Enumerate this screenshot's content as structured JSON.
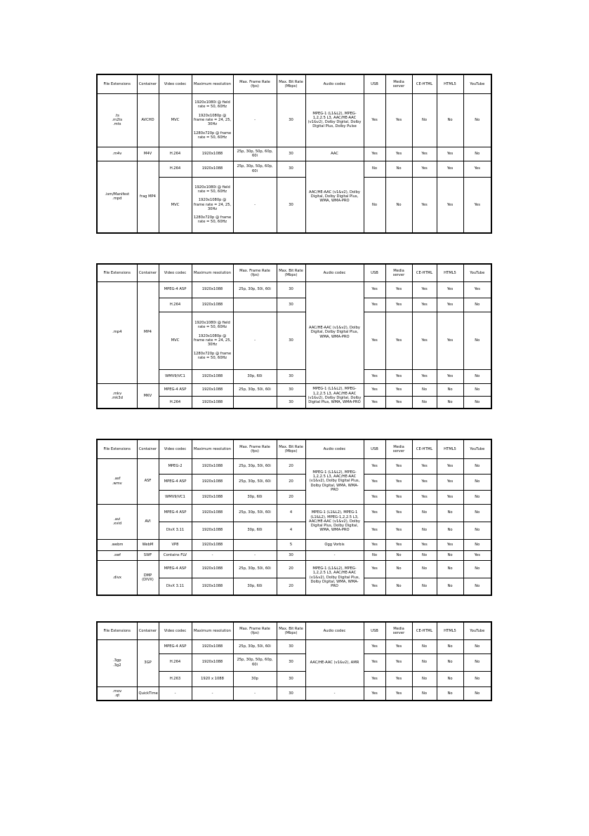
{
  "columns": [
    "File Extensions",
    "Container",
    "Video codec",
    "Maximum resolution",
    "Max. Frame Rate (fps)",
    "Max. Bit Rate (Mbps)",
    "Audio codec",
    "USB",
    "Media server",
    "CE-HTML",
    "HTML5",
    "YouTube"
  ],
  "tables": [
    {
      "rows": [
        [
          ".ts\n.m2ts\n.mts",
          "AVCHD",
          "MVC",
          "1920x1080i @ field rate = 50, 60Hz\n\n1920x1080p @ frame rate = 24, 25, 30Hz\n\n1280x720p @ frame rate = 50, 60Hz",
          "-",
          "30",
          "MPEG-1 (L1&L2), MPEG-1,2,2.5 L3, AAC/HE-AAC (v1&v2), Dolby Digital, Dolby Digital Plus, Dolby Pulse",
          "Yes",
          "Yes",
          "No",
          "No",
          "No"
        ],
        [
          ".m4v",
          "M4V",
          "H.264",
          "1920x1088",
          "25p, 30p, 50p, 60p, 60i",
          "30",
          "AAC",
          "Yes",
          "Yes",
          "Yes",
          "Yes",
          "No"
        ],
        [
          {
            "text": ".ism/Manifest\n.mpd",
            "rowspan": 2
          },
          {
            "text": "frag MP4",
            "rowspan": 2
          },
          "H.264",
          "1920x1088",
          "25p, 30p, 50p, 60p, 60i",
          "30",
          {
            "text": "AAC/HE-AAC (v1&v2), Dolby Digital, Dolby Digital Plus, WMA, WMA-PRO",
            "rowspan": 2
          },
          "No",
          "No",
          "Yes",
          "Yes",
          "Yes"
        ],
        [
          "MVC",
          "1920x1080i @ field rate = 50, 60Hz\n\n1920x1080p @ frame rate = 24, 25, 30Hz\n\n1280x720p @ frame rate = 50, 60Hz",
          "-",
          "30",
          "No",
          "No",
          "Yes",
          "Yes",
          "Yes"
        ]
      ]
    },
    {
      "rows": [
        [
          {
            "text": ".mp4",
            "rowspan": 4
          },
          {
            "text": "MP4",
            "rowspan": 4
          },
          "MPEG-4 ASP",
          "1920x1088",
          "25p, 30p, 50i, 60i",
          "30",
          {
            "text": "AAC/HE-AAC (v1&v2), Dolby Digital, Dolby Digital Plus, WMA, WMA-PRO",
            "rowspan": 4
          },
          "Yes",
          "Yes",
          "Yes",
          "Yes",
          "Yes"
        ],
        [
          "H.264",
          "1920x1088",
          "",
          "30",
          "Yes",
          "Yes",
          "Yes",
          "Yes",
          "No"
        ],
        [
          "MVC",
          "1920x1080i @ field rate = 50, 60Hz\n\n1920x1080p @ frame rate = 24, 25, 30Hz\n\n1280x720p @ frame rate = 50, 60Hz",
          "-",
          "30",
          "Yes",
          "Yes",
          "Yes",
          "Yes",
          "No"
        ],
        [
          "WMV9/VC1",
          "1920x1088",
          "30p, 60i",
          "30",
          "Yes",
          "Yes",
          "Yes",
          "Yes",
          "No"
        ],
        [
          {
            "text": ".mkv\n.mk3d",
            "rowspan": 2
          },
          {
            "text": "MKV",
            "rowspan": 2
          },
          "MPEG-4 ASP",
          "1920x1088",
          "25p, 30p, 50i, 60i",
          "30",
          {
            "text": "MPEG-1 (L1&L2), MPEG-1,2,2.5 L3, AAC/HE-AAC (v1&v2), Dolby Digital, Dolby Digital Plus, WMA, WMA-PRO",
            "rowspan": 2
          },
          "Yes",
          "Yes",
          "No",
          "No",
          "No"
        ],
        [
          "H.264",
          "1920x1088",
          "",
          "30",
          "Yes",
          "Yes",
          "No",
          "No",
          "No"
        ]
      ]
    },
    {
      "rows": [
        [
          {
            "text": ".asf\n.wmv",
            "rowspan": 3
          },
          {
            "text": "ASF",
            "rowspan": 3
          },
          "MPEG-2",
          "1920x1088",
          "25p, 30p, 50i, 60i",
          "20",
          {
            "text": "MPEG-1 (L1&L2), MPEG-1,2,2.5 L3, AAC/HE-AAC (v1&v2), Dolby Digital Plus, Dolby Digital, WMA, WMA-PRO",
            "rowspan": 3
          },
          "Yes",
          "Yes",
          "Yes",
          "Yes",
          "No"
        ],
        [
          "MPEG-4 ASP",
          "1920x1088",
          "25p, 30p, 50i, 60i",
          "20",
          "Yes",
          "Yes",
          "Yes",
          "Yes",
          "No"
        ],
        [
          "WMV9/VC1",
          "1920x1088",
          "30p, 60i",
          "20",
          "Yes",
          "Yes",
          "Yes",
          "Yes",
          "No"
        ],
        [
          {
            "text": ".avi\n.xvid",
            "rowspan": 2
          },
          {
            "text": "AVI",
            "rowspan": 2
          },
          "MPEG-4 ASP",
          "1920x1088",
          "25p, 30p, 50i, 60i",
          "4",
          {
            "text": "MPEG-1 (L1&L2), MPEG-1 (L1&L2), MPEG-1,2,2.5 L3, AAC/HE-AAC (v1&v2), Dolby Digital Plus, Dolby Digital, WMA, WMA-PRO",
            "rowspan": 2
          },
          "Yes",
          "Yes",
          "No",
          "No",
          "No"
        ],
        [
          "DivX 3.11",
          "1920x1088",
          "30p, 60i",
          "4",
          "Yes",
          "Yes",
          "No",
          "No",
          "No"
        ],
        [
          ".webm",
          "WebM",
          "VP8",
          "1920x1088",
          "",
          "5",
          "Ogg Vorbis",
          "Yes",
          "Yes",
          "Yes",
          "Yes",
          "No"
        ],
        [
          ".swf",
          "SWF",
          "Contains FLV",
          "-",
          "-",
          "30",
          "-",
          "No",
          "No",
          "No",
          "No",
          "Yes"
        ],
        [
          {
            "text": ".divx",
            "rowspan": 2
          },
          {
            "text": "DMP\n(DIVX)",
            "rowspan": 2
          },
          "MPEG-4 ASP",
          "1920x1088",
          "25p, 30p, 50i, 60i",
          "20",
          {
            "text": "MPEG-1 (L1&L2), MPEG-1,2,2.5 L3, AAC/HE-AAC (v1&v2), Dolby Digital Plus, Dolby Digital, WMA, WMA-PRO",
            "rowspan": 2
          },
          "Yes",
          "No",
          "No",
          "No",
          "No"
        ],
        [
          "DivX 3.11",
          "1920x1088",
          "30p, 60i",
          "20",
          "Yes",
          "No",
          "No",
          "No",
          "No"
        ]
      ]
    },
    {
      "rows": [
        [
          {
            "text": ".3gp\n.3g2",
            "rowspan": 3
          },
          {
            "text": "3GP",
            "rowspan": 3
          },
          "MPEG-4 ASP",
          "1920x1088",
          "25p, 30p, 50i, 60i",
          "30",
          {
            "text": "AAC/HE-AAC (v1&v2), AMR",
            "rowspan": 3
          },
          "Yes",
          "Yes",
          "No",
          "No",
          "No"
        ],
        [
          "H.264",
          "1920x1088",
          "25p, 30p, 50p, 60p, 60i",
          "30",
          "Yes",
          "Yes",
          "No",
          "No",
          "No"
        ],
        [
          "H.263",
          "1920 x 1088",
          "30p",
          "30",
          "Yes",
          "Yes",
          "No",
          "No",
          "No"
        ],
        [
          ".mov\n.qt",
          "QuickTime",
          "-",
          "-",
          "-",
          "30",
          "-",
          "Yes",
          "Yes",
          "No",
          "No",
          "No"
        ]
      ]
    }
  ]
}
